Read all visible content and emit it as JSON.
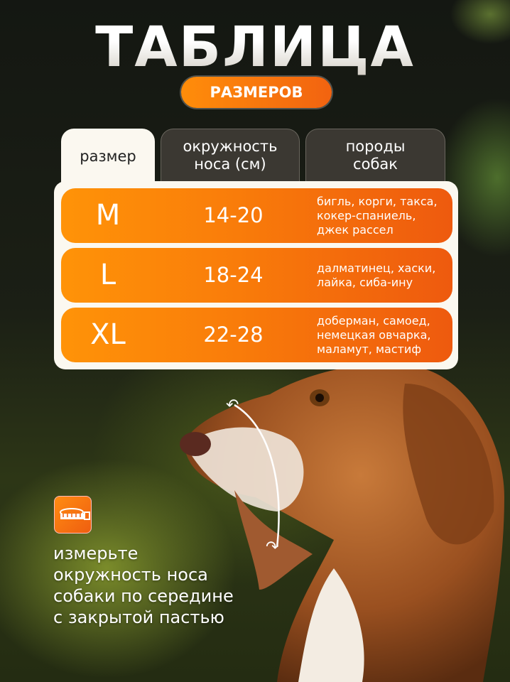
{
  "title": "ТАБЛИЦА",
  "subtitle": "РАЗМЕРОВ",
  "table": {
    "headers": [
      "размер",
      "окружность носа (см)",
      "породы собак"
    ],
    "rows": [
      {
        "size": "M",
        "range": "14-20",
        "breeds": "бигль, корги, такса,\nкокер-спаниель,\nджек рассел"
      },
      {
        "size": "L",
        "range": "18-24",
        "breeds": "далматинец, хаски,\nлайка, сиба-ину"
      },
      {
        "size": "XL",
        "range": "22-28",
        "breeds": "доберман, самоед,\nнемецкая овчарка,\nмаламут, мастиф"
      }
    ]
  },
  "icon": "measuring-tape-icon",
  "instruction": "измерьте\nокружность носа\nсобаки по середине\nс закрытой пастью",
  "colors": {
    "accent": "#f77a0c",
    "background": "#1b1f15",
    "table_bg": "#fbf8f0"
  }
}
